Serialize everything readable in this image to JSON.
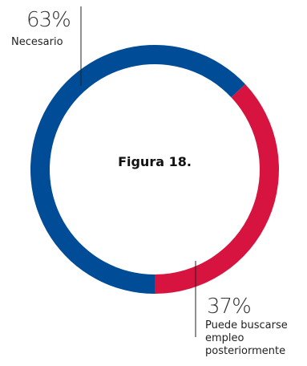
{
  "chart_data": {
    "type": "pie",
    "style": "donut",
    "title": "Figura 18.",
    "slices": [
      {
        "label": "Necesario",
        "value": 63,
        "value_label": "63%",
        "color": "#004C97"
      },
      {
        "label": "Puede buscarse empleo posteriormente",
        "value": 37,
        "value_label": "37%",
        "color": "#D7143F"
      }
    ],
    "start_angle_deg": 0,
    "direction": "counterclockwise-from-bottom"
  }
}
